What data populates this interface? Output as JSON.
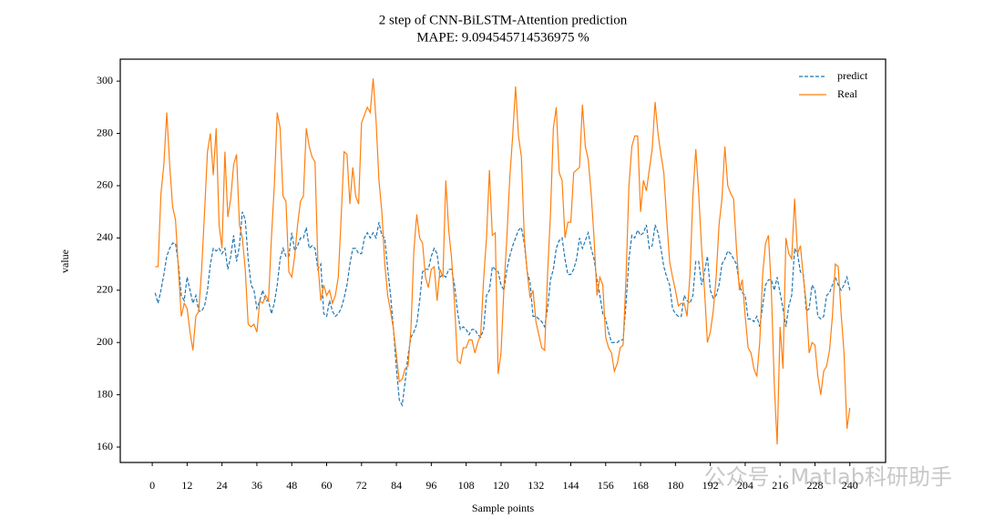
{
  "chart_data": {
    "type": "line",
    "title": "2 step of CNN-BiLSTM-Attention prediction",
    "subtitle": "MAPE: 9.094545714536975 %",
    "x_label": "Sample points",
    "y_label": "value",
    "watermark": "公众号 · Matlab科研助手",
    "legend": "upper right",
    "grid": false,
    "xlim": [
      -11,
      252.3
    ],
    "ylim": [
      154.1,
      308.4
    ],
    "xticks": [
      0,
      12,
      24,
      36,
      48,
      60,
      72,
      84,
      96,
      108,
      120,
      132,
      144,
      156,
      168,
      180,
      192,
      204,
      216,
      228,
      240
    ],
    "yticks": [
      160,
      180,
      200,
      220,
      240,
      260,
      280,
      300
    ],
    "x": [
      1,
      2,
      3,
      4,
      5,
      6,
      7,
      8,
      9,
      10,
      11,
      12,
      13,
      14,
      15,
      16,
      17,
      18,
      19,
      20,
      21,
      22,
      23,
      24,
      25,
      26,
      27,
      28,
      29,
      30,
      31,
      32,
      33,
      34,
      35,
      36,
      37,
      38,
      39,
      40,
      41,
      42,
      43,
      44,
      45,
      46,
      47,
      48,
      49,
      50,
      51,
      52,
      53,
      54,
      55,
      56,
      57,
      58,
      59,
      60,
      61,
      62,
      63,
      64,
      65,
      66,
      67,
      68,
      69,
      70,
      71,
      72,
      73,
      74,
      75,
      76,
      77,
      78,
      79,
      80,
      81,
      82,
      83,
      84,
      85,
      86,
      87,
      88,
      89,
      90,
      91,
      92,
      93,
      94,
      95,
      96,
      97,
      98,
      99,
      100,
      101,
      102,
      103,
      104,
      105,
      106,
      107,
      108,
      109,
      110,
      111,
      112,
      113,
      114,
      115,
      116,
      117,
      118,
      119,
      120,
      121,
      122,
      123,
      124,
      125,
      126,
      127,
      128,
      129,
      130,
      131,
      132,
      133,
      134,
      135,
      136,
      137,
      138,
      139,
      140,
      141,
      142,
      143,
      144,
      145,
      146,
      147,
      148,
      149,
      150,
      151,
      152,
      153,
      154,
      155,
      156,
      157,
      158,
      159,
      160,
      161,
      162,
      163,
      164,
      165,
      166,
      167,
      168,
      169,
      170,
      171,
      172,
      173,
      174,
      175,
      176,
      177,
      178,
      179,
      180,
      181,
      182,
      183,
      184,
      185,
      186,
      187,
      188,
      189,
      190,
      191,
      192,
      193,
      194,
      195,
      196,
      197,
      198,
      199,
      200,
      201,
      202,
      203,
      204,
      205,
      206,
      207,
      208,
      209,
      210,
      211,
      212,
      213,
      214,
      215,
      216,
      217,
      218,
      219,
      220,
      221,
      222,
      223,
      224,
      225,
      226,
      227,
      228,
      229,
      230,
      231,
      232,
      233,
      234,
      235,
      236,
      237,
      238,
      239,
      240
    ],
    "series": [
      {
        "name": "predict",
        "color": "#1f77b4",
        "linestyle": "dashed",
        "values": [
          219,
          215,
          220,
          226,
          233,
          236,
          238,
          238,
          230,
          218,
          216,
          225,
          220,
          215,
          218,
          212,
          212,
          214,
          220,
          230,
          236,
          235,
          236,
          234,
          236,
          228,
          233,
          241,
          231,
          237,
          250,
          247,
          232,
          222,
          220,
          213,
          216,
          220,
          216,
          216,
          211,
          215,
          222,
          232,
          236,
          233,
          233,
          242,
          235,
          237,
          240,
          240,
          244,
          236,
          237,
          236,
          228,
          230,
          211,
          210,
          216,
          212,
          210,
          211,
          213,
          217,
          222,
          230,
          236,
          236,
          234,
          234,
          240,
          242,
          240,
          242,
          240,
          246,
          241,
          240,
          228,
          218,
          205,
          190,
          178,
          176,
          185,
          195,
          202,
          204,
          207,
          216,
          227,
          228,
          228,
          233,
          236,
          234,
          225,
          226,
          225,
          228,
          228,
          222,
          212,
          205,
          206,
          205,
          203,
          205,
          205,
          203,
          202,
          205,
          218,
          220,
          229,
          228,
          227,
          222,
          220,
          228,
          233,
          237,
          240,
          243,
          244,
          238,
          227,
          223,
          210,
          210,
          209,
          208,
          206,
          213,
          224,
          228,
          236,
          239,
          240,
          232,
          226,
          226,
          228,
          232,
          240,
          236,
          239,
          242,
          236,
          232,
          224,
          218,
          211,
          209,
          204,
          200,
          200,
          200,
          201,
          201,
          215,
          232,
          241,
          240,
          243,
          241,
          242,
          245,
          236,
          237,
          245,
          242,
          236,
          229,
          225,
          222,
          213,
          211,
          210,
          210,
          218,
          216,
          215,
          218,
          231,
          231,
          222,
          227,
          233,
          220,
          217,
          218,
          222,
          230,
          232,
          235,
          234,
          232,
          230,
          222,
          219,
          218,
          209,
          209,
          208,
          210,
          206,
          214,
          222,
          224,
          224,
          220,
          225,
          219,
          213,
          206,
          214,
          218,
          236,
          234,
          227,
          226,
          212,
          213,
          222,
          220,
          210,
          209,
          210,
          218,
          219,
          222,
          225,
          222,
          220,
          222,
          225,
          220
        ]
      },
      {
        "name": "Real",
        "color": "#ff7f0e",
        "linestyle": "solid",
        "values": [
          229,
          229,
          257,
          268,
          288,
          268,
          252,
          247,
          228,
          210,
          215,
          213,
          204,
          197,
          210,
          212,
          228,
          250,
          273,
          280,
          264,
          282,
          245,
          236,
          273,
          248,
          255,
          268,
          272,
          245,
          240,
          228,
          207,
          206,
          207,
          204,
          216,
          215,
          218,
          216,
          240,
          260,
          288,
          282,
          256,
          254,
          227,
          225,
          233,
          245,
          254,
          256,
          282,
          275,
          271,
          269,
          230,
          216,
          222,
          218,
          220,
          215,
          218,
          225,
          248,
          273,
          272,
          253,
          267,
          256,
          253,
          284,
          287,
          290,
          288,
          301,
          285,
          262,
          250,
          230,
          218,
          212,
          205,
          195,
          185,
          186,
          190,
          191,
          205,
          235,
          249,
          240,
          238,
          225,
          221,
          228,
          229,
          216,
          228,
          225,
          262,
          243,
          232,
          215,
          193,
          192,
          198,
          198,
          201,
          201,
          196,
          200,
          203,
          224,
          240,
          266,
          241,
          242,
          188,
          196,
          221,
          240,
          263,
          279,
          298,
          279,
          271,
          240,
          227,
          217,
          220,
          208,
          203,
          198,
          197,
          226,
          249,
          282,
          290,
          265,
          262,
          240,
          246,
          246,
          265,
          266,
          267,
          291,
          275,
          270,
          257,
          240,
          218,
          225,
          222,
          202,
          198,
          196,
          189,
          192,
          198,
          199,
          225,
          260,
          275,
          279,
          279,
          250,
          262,
          258,
          266,
          274,
          292,
          280,
          272,
          265,
          247,
          231,
          225,
          220,
          214,
          215,
          215,
          210,
          226,
          256,
          274,
          257,
          236,
          220,
          200,
          204,
          212,
          225,
          245,
          255,
          275,
          260,
          257,
          255,
          236,
          220,
          224,
          210,
          198,
          196,
          190,
          187,
          200,
          226,
          238,
          241,
          220,
          184,
          161,
          206,
          190,
          240,
          234,
          232,
          255,
          234,
          237,
          225,
          215,
          196,
          200,
          199,
          187,
          180,
          189,
          191,
          197,
          210,
          230,
          229,
          211,
          196,
          167,
          175
        ]
      }
    ]
  }
}
